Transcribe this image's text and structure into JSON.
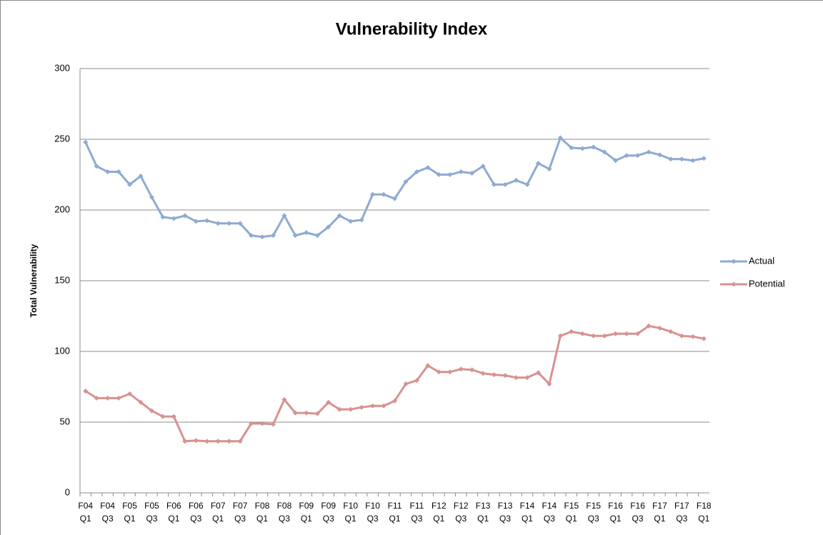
{
  "chart_data": {
    "type": "line",
    "title": "Vulnerability Index",
    "y_label": "Total Vulnerability",
    "categories": [
      "F04 Q1",
      null,
      "F04 Q3",
      null,
      "F05 Q1",
      null,
      "F05 Q3",
      null,
      "F06 Q1",
      null,
      "F06 Q3",
      null,
      "F07 Q1",
      null,
      "F07 Q3",
      null,
      "F08 Q1",
      null,
      "F08 Q3",
      null,
      "F09 Q1",
      null,
      "F09 Q3",
      null,
      "F10 Q1",
      null,
      "F10 Q3",
      null,
      "F11 Q1",
      null,
      "F11 Q3",
      null,
      "F12 Q1",
      null,
      "F12 Q3",
      null,
      "F13 Q1",
      null,
      "F13 Q3",
      null,
      "F14 Q1",
      null,
      "F14 Q3",
      null,
      "F15 Q1",
      null,
      "F15 Q3",
      null,
      "F16 Q1",
      null,
      "F16 Q3",
      null,
      "F17 Q1",
      null,
      "F17 Q3",
      null,
      "F18 Q1"
    ],
    "series": [
      {
        "name": "Actual",
        "color": "#8eaad2",
        "values": [
          248,
          231,
          227,
          227,
          218,
          224,
          209,
          195,
          194,
          196,
          192,
          192.5,
          190.5,
          190.5,
          190.5,
          182,
          181,
          182,
          196,
          182,
          184,
          182,
          188,
          196,
          192,
          193,
          211,
          211,
          208,
          220,
          227,
          230,
          225,
          225,
          227,
          226,
          231,
          218,
          218,
          221,
          218,
          233,
          229,
          251,
          244,
          243.5,
          244.5,
          241,
          235,
          238.5,
          238.5,
          241,
          239,
          236,
          236,
          235,
          236.5
        ]
      },
      {
        "name": "Potential",
        "color": "#d79290",
        "values": [
          72,
          67,
          67,
          67,
          70,
          64,
          58,
          54,
          54,
          36.5,
          37,
          36.5,
          36.5,
          36.5,
          36.5,
          49,
          49,
          48.5,
          66,
          56.5,
          56.5,
          56,
          64,
          59,
          59,
          60.5,
          61.5,
          61.5,
          65,
          77,
          79.5,
          90,
          85.5,
          85.5,
          87.5,
          87,
          84.5,
          83.5,
          83,
          81.5,
          81.5,
          85,
          77,
          111,
          114,
          112.5,
          111,
          111,
          112.5,
          112.5,
          112.5,
          118,
          116.5,
          114,
          111,
          110.5,
          109
        ]
      }
    ],
    "ylim": [
      0,
      300
    ],
    "yticks": [
      0,
      50,
      100,
      150,
      200,
      250,
      300
    ],
    "grid": true,
    "legend": "right"
  }
}
